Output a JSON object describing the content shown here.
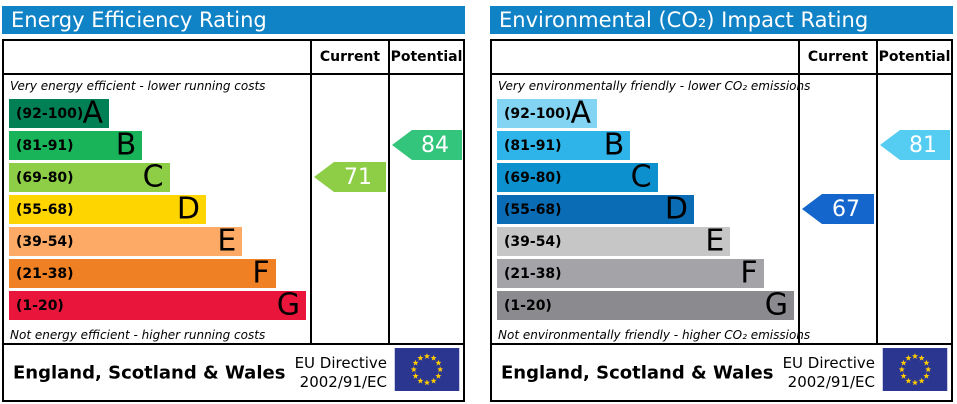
{
  "colors": {
    "header_blue": "#1082c6",
    "eu_flag_blue": "#2b3690",
    "eu_flag_star": "#ffcc00",
    "border_black": "#000000"
  },
  "panels": [
    {
      "id": "energy-efficiency",
      "title": "Energy Efficiency Rating",
      "header_bg": "#1082c6",
      "columns": {
        "current": "Current",
        "potential": "Potential"
      },
      "caption_top": "Very energy efficient - lower running costs",
      "caption_bottom": "Not energy efficient - higher running costs",
      "bands": [
        {
          "letter": "A",
          "range": "(92-100)",
          "color": "#008054",
          "width_pct": 33
        },
        {
          "letter": "B",
          "range": "(81-91)",
          "color": "#19b459",
          "width_pct": 44
        },
        {
          "letter": "C",
          "range": "(69-80)",
          "color": "#8dce46",
          "width_pct": 53
        },
        {
          "letter": "D",
          "range": "(55-68)",
          "color": "#ffd500",
          "width_pct": 65
        },
        {
          "letter": "E",
          "range": "(39-54)",
          "color": "#fcaa65",
          "width_pct": 77
        },
        {
          "letter": "F",
          "range": "(21-38)",
          "color": "#ef8023",
          "width_pct": 88
        },
        {
          "letter": "G",
          "range": "(1-20)",
          "color": "#e9153b",
          "width_pct": 98
        }
      ],
      "current": {
        "value": 71,
        "band": "C",
        "color": "#8dce46"
      },
      "potential": {
        "value": 84,
        "band": "B",
        "color": "#34c57c"
      },
      "footer": {
        "region": "England, Scotland & Wales",
        "directive_line1": "EU Directive",
        "directive_line2": "2002/91/EC"
      }
    },
    {
      "id": "environmental-co2-impact",
      "title": "Environmental (CO₂) Impact Rating",
      "header_bg": "#1082c6",
      "columns": {
        "current": "Current",
        "potential": "Potential"
      },
      "caption_top": "Very environmentally friendly - lower CO₂ emissions",
      "caption_bottom": "Not environmentally friendly - higher CO₂ emissions",
      "bands": [
        {
          "letter": "A",
          "range": "(92-100)",
          "color": "#82d4f2",
          "width_pct": 33
        },
        {
          "letter": "B",
          "range": "(81-91)",
          "color": "#2eb4e8",
          "width_pct": 44
        },
        {
          "letter": "C",
          "range": "(69-80)",
          "color": "#0d90ce",
          "width_pct": 53
        },
        {
          "letter": "D",
          "range": "(55-68)",
          "color": "#0a6cb4",
          "width_pct": 65
        },
        {
          "letter": "E",
          "range": "(39-54)",
          "color": "#c6c6c6",
          "width_pct": 77
        },
        {
          "letter": "F",
          "range": "(21-38)",
          "color": "#a4a4a8",
          "width_pct": 88
        },
        {
          "letter": "G",
          "range": "(1-20)",
          "color": "#8b8b8f",
          "width_pct": 98
        }
      ],
      "current": {
        "value": 67,
        "band": "D",
        "color": "#1466cc"
      },
      "potential": {
        "value": 81,
        "band": "B",
        "color": "#55ccf1"
      },
      "footer": {
        "region": "England, Scotland & Wales",
        "directive_line1": "EU Directive",
        "directive_line2": "2002/91/EC"
      }
    }
  ],
  "chart_data": [
    {
      "type": "bar",
      "orientation": "horizontal",
      "title": "Energy Efficiency Rating",
      "categories": [
        "A (92-100)",
        "B (81-91)",
        "C (69-80)",
        "D (55-68)",
        "E (39-54)",
        "F (21-38)",
        "G (1-20)"
      ],
      "values": [
        33,
        44,
        53,
        65,
        77,
        88,
        98
      ],
      "values_note": "decorative ladder bar widths, % of scale column",
      "legend": [
        "Current",
        "Potential"
      ],
      "markers": [
        {
          "label": "Current",
          "value": 71,
          "band": "C"
        },
        {
          "label": "Potential",
          "value": 84,
          "band": "B"
        }
      ],
      "annotation_top": "Very energy efficient - lower running costs",
      "annotation_bottom": "Not energy efficient - higher running costs",
      "region": "England, Scotland & Wales",
      "directive": "EU Directive 2002/91/EC"
    },
    {
      "type": "bar",
      "orientation": "horizontal",
      "title": "Environmental (CO₂) Impact Rating",
      "categories": [
        "A (92-100)",
        "B (81-91)",
        "C (69-80)",
        "D (55-68)",
        "E (39-54)",
        "F (21-38)",
        "G (1-20)"
      ],
      "values": [
        33,
        44,
        53,
        65,
        77,
        88,
        98
      ],
      "values_note": "decorative ladder bar widths, % of scale column",
      "legend": [
        "Current",
        "Potential"
      ],
      "markers": [
        {
          "label": "Current",
          "value": 67,
          "band": "D"
        },
        {
          "label": "Potential",
          "value": 81,
          "band": "B"
        }
      ],
      "annotation_top": "Very environmentally friendly - lower CO₂ emissions",
      "annotation_bottom": "Not environmentally friendly - higher CO₂ emissions",
      "region": "England, Scotland & Wales",
      "directive": "EU Directive 2002/91/EC"
    }
  ]
}
